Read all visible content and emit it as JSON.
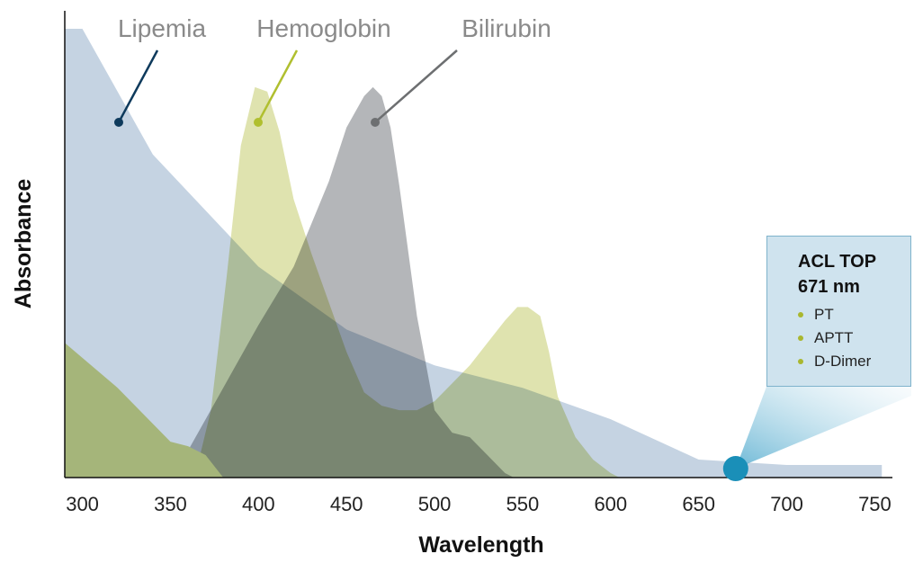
{
  "chart_data": {
    "type": "area",
    "xlabel": "Wavelength",
    "ylabel": "Absorbance",
    "xlim": [
      290,
      760
    ],
    "ylim": [
      0,
      1
    ],
    "ticks": [
      300,
      350,
      400,
      450,
      500,
      550,
      600,
      650,
      700,
      750
    ],
    "series": [
      {
        "name": "Lipemia",
        "color": "#c5d3e2",
        "x": [
          290,
          300,
          340,
          400,
          450,
          500,
          550,
          600,
          650,
          700,
          754
        ],
        "y": [
          1.0,
          1.0,
          0.72,
          0.47,
          0.33,
          0.25,
          0.2,
          0.13,
          0.04,
          0.028,
          0.028
        ]
      },
      {
        "name": "Hemoglobin",
        "color": "#d6db98",
        "x": [
          290,
          355,
          365,
          373,
          382,
          390,
          398,
          405,
          412,
          420,
          430,
          440,
          450,
          460,
          470,
          480,
          490,
          500,
          510,
          520,
          530,
          540,
          547,
          553,
          560,
          565,
          570,
          580,
          590,
          600,
          605
        ],
        "y": [
          0.0,
          0.0,
          0.02,
          0.15,
          0.45,
          0.74,
          0.87,
          0.86,
          0.77,
          0.62,
          0.5,
          0.39,
          0.28,
          0.19,
          0.16,
          0.15,
          0.15,
          0.17,
          0.21,
          0.25,
          0.3,
          0.35,
          0.38,
          0.38,
          0.36,
          0.28,
          0.18,
          0.09,
          0.04,
          0.01,
          0.0
        ]
      },
      {
        "name": "Bilirubin",
        "color": "#9fa2a5",
        "x": [
          290,
          340,
          360,
          380,
          400,
          420,
          440,
          450,
          460,
          465,
          470,
          475,
          480,
          490,
          500,
          510,
          520,
          530,
          540,
          545
        ],
        "y": [
          0.0,
          0.0,
          0.06,
          0.2,
          0.34,
          0.47,
          0.66,
          0.78,
          0.85,
          0.87,
          0.85,
          0.78,
          0.65,
          0.36,
          0.15,
          0.1,
          0.09,
          0.05,
          0.01,
          0.0
        ]
      },
      {
        "name": "",
        "color": "#a5b57a",
        "x": [
          290,
          320,
          350,
          360,
          370,
          380
        ],
        "y": [
          0.3,
          0.2,
          0.08,
          0.07,
          0.05,
          0.0
        ]
      }
    ],
    "highlight": {
      "x": 671,
      "y": 0.02,
      "color": "#1a8fb8"
    },
    "annotation": {
      "title_line1": "ACL TOP",
      "title_line2": "671 nm",
      "items": [
        "PT",
        "APTT",
        "D-Dimer"
      ]
    }
  }
}
